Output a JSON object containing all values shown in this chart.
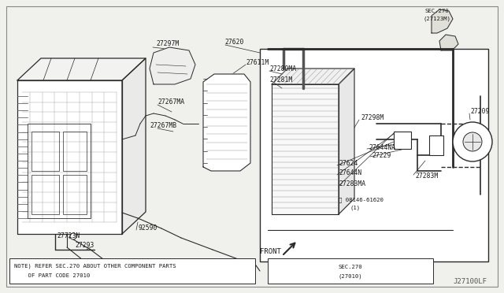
{
  "bg_color": "#f0f0ec",
  "white": "#ffffff",
  "line_color": "#2a2a2a",
  "text_color": "#1a1a1a",
  "note_text1": "NOTE) REFER SEC.270 ABOUT OTHER COMPONENT PARTS",
  "note_text2": "    OF PART CODE 27010",
  "footer_code": "J27100LF",
  "sec270_top_line1": "SEC.270",
  "sec270_top_line2": "(27123M)",
  "sec270_bot_line1": "SEC.270",
  "sec270_bot_line2": "(27010)",
  "font_size": 5.8,
  "small_font": 5.2
}
